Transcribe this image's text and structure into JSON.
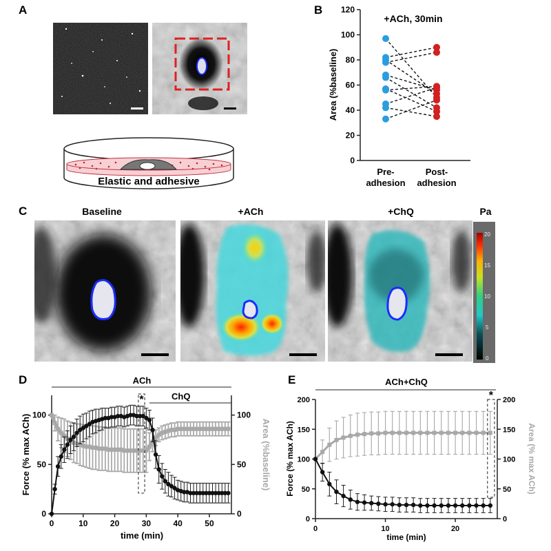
{
  "figure": {
    "panel_labels": [
      "A",
      "B",
      "C",
      "D",
      "E"
    ],
    "panelA": {
      "dish_label": "Elastic and adhesive"
    },
    "panelC": {
      "titles": [
        "Baseline",
        "+ACh",
        "+ChQ"
      ],
      "colorbar": {
        "unit": "Pa",
        "ticks": [
          "20",
          "15",
          "10",
          "5",
          "0"
        ]
      }
    }
  },
  "chart_data": [
    {
      "id": "B",
      "type": "scatter",
      "title": "+ACh, 30min",
      "xlabel": "",
      "ylabel": "Area (%baseline)",
      "categories": [
        "Pre-\nadhesion",
        "Post-\nadhesion"
      ],
      "ylim": [
        0,
        120
      ],
      "yticks": [
        0,
        20,
        40,
        60,
        80,
        100,
        120
      ],
      "pairs": [
        [
          97,
          50
        ],
        [
          82,
          90
        ],
        [
          80,
          53
        ],
        [
          78,
          86
        ],
        [
          68,
          56
        ],
        [
          66,
          42
        ],
        [
          57,
          39
        ],
        [
          56,
          59
        ],
        [
          45,
          58
        ],
        [
          42,
          35
        ],
        [
          33,
          48
        ]
      ],
      "colors": {
        "pre": "#2a9de0",
        "post": "#d32020"
      }
    },
    {
      "id": "D",
      "type": "line",
      "xlabel": "time (min)",
      "ylabel": "Force (% max ACh)",
      "ylabel_right": "Area (%baseline)",
      "xlim": [
        0,
        57
      ],
      "ylim": [
        0,
        120
      ],
      "ylim_right": [
        0,
        120
      ],
      "xticks": [
        0,
        10,
        20,
        30,
        40,
        50
      ],
      "yticks": [
        0,
        50,
        100
      ],
      "yticks_right": [
        0,
        50,
        100
      ],
      "annotations": {
        "top_bar": "ACh",
        "sub_bar": "ChQ",
        "star": "*"
      },
      "series": [
        {
          "name": "Force",
          "axis": "left",
          "color": "#111111",
          "x": [
            0,
            1,
            2,
            3,
            4,
            5,
            6,
            7,
            8,
            9,
            10,
            11,
            12,
            13,
            14,
            15,
            16,
            17,
            18,
            19,
            20,
            21,
            22,
            23,
            24,
            25,
            26,
            27,
            28,
            29,
            30,
            31,
            32,
            33,
            34,
            35,
            36,
            37,
            38,
            39,
            40,
            41,
            42,
            43,
            44,
            45,
            46,
            47,
            48,
            49,
            50,
            51,
            52,
            53,
            54,
            55,
            56
          ],
          "y": [
            0,
            25,
            48,
            58,
            65,
            70,
            75,
            78,
            82,
            85,
            87,
            89,
            91,
            93,
            94,
            95,
            96,
            97,
            97,
            98,
            98,
            99,
            99,
            98,
            99,
            100,
            100,
            99,
            99,
            99,
            97,
            95,
            85,
            60,
            45,
            38,
            33,
            30,
            28,
            26,
            24,
            23,
            22,
            22,
            21,
            21,
            21,
            21,
            21,
            21,
            21,
            21,
            21,
            21,
            21,
            21,
            21
          ],
          "err": [
            0,
            5,
            10,
            12,
            13,
            14,
            14,
            14,
            14,
            14,
            14,
            13,
            13,
            12,
            12,
            11,
            11,
            10,
            10,
            10,
            10,
            10,
            10,
            10,
            10,
            10,
            10,
            10,
            10,
            10,
            10,
            10,
            12,
            14,
            14,
            13,
            12,
            12,
            11,
            11,
            10,
            10,
            10,
            10,
            10,
            10,
            10,
            10,
            10,
            10,
            10,
            10,
            10,
            10,
            10,
            10,
            10
          ]
        },
        {
          "name": "Area",
          "axis": "right",
          "color": "#a8a8a8",
          "x": [
            0,
            1,
            2,
            3,
            4,
            5,
            6,
            7,
            8,
            9,
            10,
            11,
            12,
            13,
            14,
            15,
            16,
            17,
            18,
            19,
            20,
            21,
            22,
            23,
            24,
            25,
            26,
            27,
            28,
            29,
            30,
            31,
            32,
            33,
            34,
            35,
            36,
            37,
            38,
            39,
            40,
            41,
            42,
            43,
            44,
            45,
            46,
            47,
            48,
            49,
            50,
            51,
            52,
            53,
            54,
            55,
            56
          ],
          "y": [
            100,
            92,
            86,
            82,
            79,
            76,
            74,
            72,
            71,
            70,
            69,
            68,
            68,
            67,
            67,
            66,
            66,
            66,
            65,
            65,
            65,
            65,
            65,
            64,
            64,
            64,
            64,
            64,
            64,
            64,
            64,
            68,
            73,
            77,
            80,
            82,
            83,
            84,
            85,
            85,
            86,
            86,
            86,
            86,
            86,
            86,
            86,
            86,
            86,
            86,
            86,
            86,
            86,
            86,
            86,
            86,
            86
          ],
          "err": [
            0,
            8,
            12,
            15,
            17,
            18,
            19,
            20,
            20,
            21,
            21,
            21,
            22,
            22,
            22,
            22,
            22,
            22,
            22,
            22,
            22,
            22,
            22,
            22,
            22,
            22,
            22,
            22,
            22,
            22,
            22,
            14,
            10,
            8,
            7,
            7,
            7,
            7,
            7,
            7,
            7,
            7,
            7,
            7,
            7,
            7,
            7,
            7,
            7,
            7,
            7,
            7,
            7,
            7,
            7,
            7,
            7
          ]
        }
      ]
    },
    {
      "id": "E",
      "type": "line",
      "xlabel": "time (min)",
      "ylabel": "Force (% max ACh)",
      "ylabel_right": "Area (% max ACh)",
      "xlim": [
        0,
        26
      ],
      "ylim": [
        0,
        200
      ],
      "ylim_right": [
        0,
        200
      ],
      "xticks": [
        0,
        10,
        20
      ],
      "yticks": [
        0,
        50,
        100,
        150,
        200
      ],
      "yticks_right": [
        0,
        50,
        100,
        150,
        200
      ],
      "annotations": {
        "top_bar": "ACh+ChQ",
        "star": "*"
      },
      "series": [
        {
          "name": "Force",
          "axis": "left",
          "color": "#111111",
          "x": [
            0,
            1,
            2,
            3,
            4,
            5,
            6,
            7,
            8,
            9,
            10,
            11,
            12,
            13,
            14,
            15,
            16,
            17,
            18,
            19,
            20,
            21,
            22,
            23,
            24,
            25
          ],
          "y": [
            100,
            78,
            58,
            45,
            38,
            32,
            28,
            27,
            26,
            25,
            24,
            24,
            23,
            23,
            23,
            22,
            22,
            22,
            22,
            22,
            22,
            22,
            22,
            22,
            22,
            22
          ],
          "err": [
            0,
            15,
            20,
            20,
            18,
            16,
            14,
            13,
            12,
            12,
            12,
            12,
            12,
            12,
            12,
            12,
            12,
            12,
            12,
            12,
            12,
            12,
            12,
            12,
            12,
            12
          ]
        },
        {
          "name": "Area",
          "axis": "right",
          "color": "#a8a8a8",
          "x": [
            0,
            1,
            2,
            3,
            4,
            5,
            6,
            7,
            8,
            9,
            10,
            11,
            12,
            13,
            14,
            15,
            16,
            17,
            18,
            19,
            20,
            21,
            22,
            23,
            24,
            25
          ],
          "y": [
            100,
            112,
            124,
            132,
            136,
            139,
            141,
            142,
            143,
            143,
            144,
            144,
            144,
            144,
            144,
            144,
            144,
            144,
            144,
            144,
            144,
            144,
            144,
            144,
            144,
            144
          ],
          "err": [
            0,
            20,
            28,
            32,
            34,
            35,
            36,
            36,
            36,
            36,
            36,
            36,
            36,
            36,
            36,
            36,
            36,
            36,
            36,
            36,
            36,
            36,
            36,
            36,
            36,
            36
          ]
        }
      ]
    }
  ]
}
